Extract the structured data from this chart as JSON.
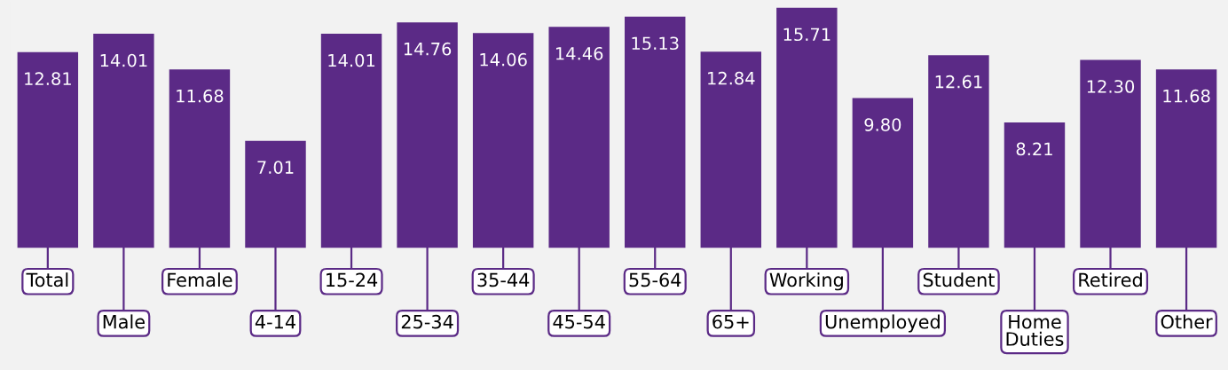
{
  "chart_data": {
    "type": "bar",
    "categories": [
      "Total",
      "Male",
      "Female",
      "4-14",
      "15-24",
      "25-34",
      "35-44",
      "45-54",
      "55-64",
      "65+",
      "Working",
      "Unemployed",
      "Student",
      "Home Duties",
      "Retired",
      "Other"
    ],
    "values": [
      12.81,
      14.01,
      11.68,
      7.01,
      14.01,
      14.76,
      14.06,
      14.46,
      15.13,
      12.84,
      15.71,
      9.8,
      12.61,
      8.21,
      12.3,
      11.68
    ],
    "value_labels": [
      "12.81",
      "14.01",
      "11.68",
      "7.01",
      "14.01",
      "14.76",
      "14.06",
      "14.46",
      "15.13",
      "12.84",
      "15.71",
      "9.80",
      "12.61",
      "8.21",
      "12.30",
      "11.68"
    ],
    "color": "#5b2a86"
  }
}
